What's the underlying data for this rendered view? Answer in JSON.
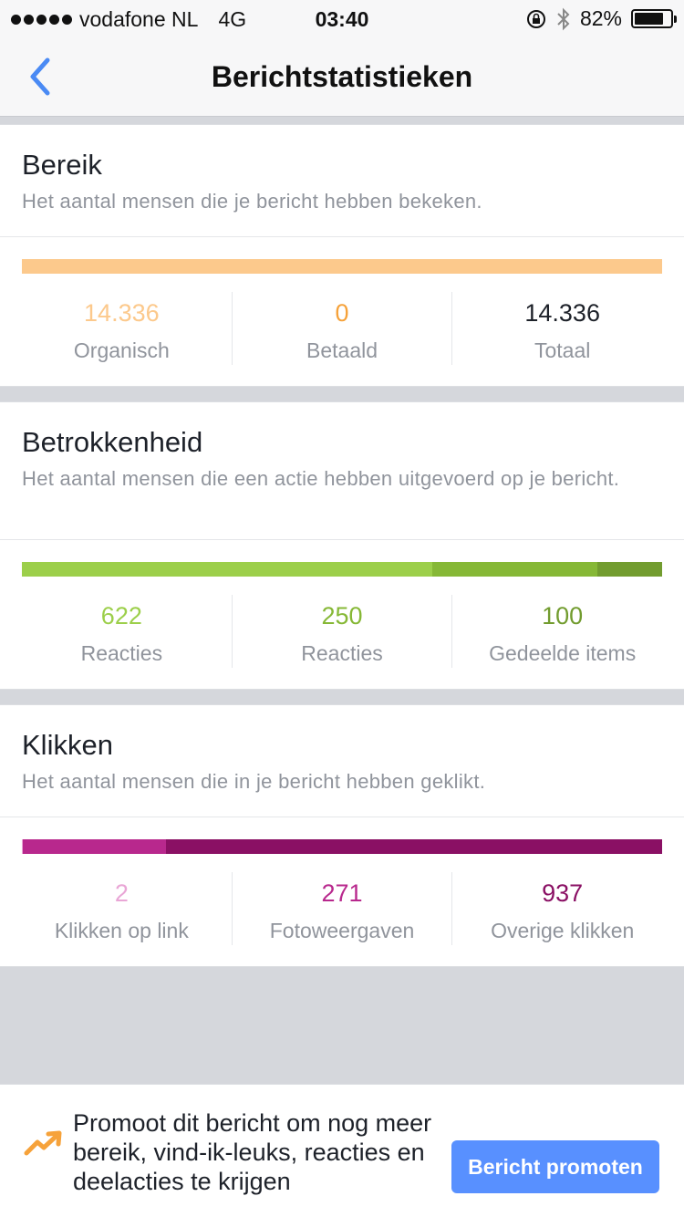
{
  "status_bar": {
    "carrier": "vodafone NL",
    "network": "4G",
    "time": "03:40",
    "battery_percent": "82%",
    "battery_level": 0.82
  },
  "nav": {
    "title": "Berichtstatistieken",
    "back_icon": "chevron-left-icon"
  },
  "reach": {
    "title": "Bereik",
    "description": "Het aantal mensen die je bericht hebben bekeken.",
    "bar_colors": [
      "#fcc98c"
    ],
    "bar_fractions": [
      1.0
    ],
    "stats": [
      {
        "value": "14.336",
        "label": "Organisch",
        "color": "#fcc98c"
      },
      {
        "value": "0",
        "label": "Betaald",
        "color": "#f6a23a"
      },
      {
        "value": "14.336",
        "label": "Totaal",
        "color": "#1d2129"
      }
    ]
  },
  "engagement": {
    "title": "Betrokkenheid",
    "description": "Het aantal mensen die een actie hebben uitgevoerd op je bericht.",
    "bar_colors": [
      "#9ccf4a",
      "#86b836",
      "#729c2f"
    ],
    "bar_fractions": [
      0.641,
      0.258,
      0.101
    ],
    "stats": [
      {
        "value": "622",
        "label": "Reacties",
        "color": "#9ccf4a"
      },
      {
        "value": "250",
        "label": "Reacties",
        "color": "#86b836"
      },
      {
        "value": "100",
        "label": "Gedeelde items",
        "color": "#729c2f"
      }
    ]
  },
  "clicks": {
    "title": "Klikken",
    "description": "Het aantal mensen die in je bericht hebben geklikt.",
    "bar_colors": [
      "#e9a6d6",
      "#b8288d",
      "#8a1064"
    ],
    "bar_fractions": [
      0.002,
      0.223,
      0.775
    ],
    "stats": [
      {
        "value": "2",
        "label": "Klikken op link",
        "color": "#e9a6d6"
      },
      {
        "value": "271",
        "label": "Fotoweergaven",
        "color": "#b8288d"
      },
      {
        "value": "937",
        "label": "Overige klikken",
        "color": "#8a1064"
      }
    ]
  },
  "promo": {
    "icon": "trending-up-arrow-icon",
    "text": "Promoot dit bericht om nog meer bereik, vind-ik-leuks, reacties en deelacties te krijgen",
    "button_label": "Bericht promoten"
  }
}
